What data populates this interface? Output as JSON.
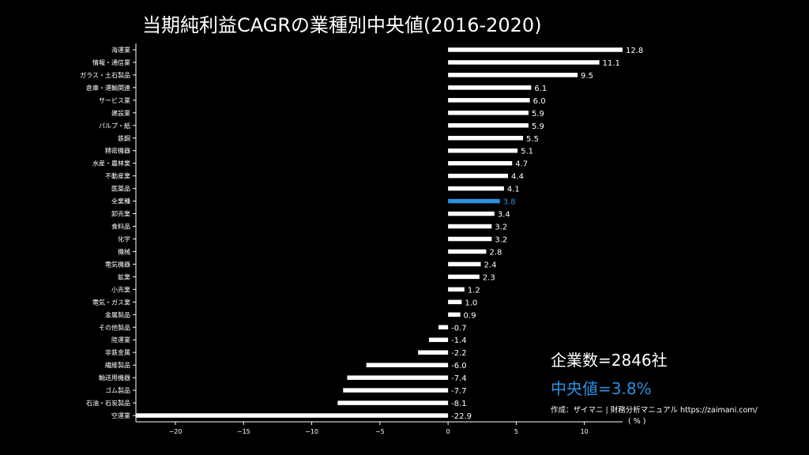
{
  "colors": {
    "background": "#000000",
    "bar": "#ffffff",
    "highlight": "#2d8fe0",
    "text": "#ffffff"
  },
  "annotations": {
    "company_count": "企業数=2846社",
    "median": "中央値=3.8%",
    "credit": "作成：ザイマニ | 財務分析マニュアル https://zaimani.com/"
  },
  "chart_data": {
    "type": "bar",
    "orientation": "horizontal",
    "title": "当期純利益CAGRの業種別中央値(2016-2020)",
    "xlabel": "( % )",
    "xlim": [
      -22.9,
      12.8
    ],
    "xticks": [
      -20,
      -15,
      -10,
      -5,
      0,
      5,
      10
    ],
    "xtick_labels": [
      "−20",
      "−15",
      "−10",
      "−5",
      "0",
      "5",
      "10"
    ],
    "highlight_category": "全業種",
    "categories": [
      "海運業",
      "情報・通信業",
      "ガラス・土石製品",
      "倉庫・運輸関連",
      "サービス業",
      "建設業",
      "パルプ・紙",
      "鉄鋼",
      "精密機器",
      "水産・農林業",
      "不動産業",
      "医薬品",
      "全業種",
      "卸売業",
      "食料品",
      "化学",
      "機械",
      "電気機器",
      "鉱業",
      "小売業",
      "電気・ガス業",
      "金属製品",
      "その他製品",
      "陸運業",
      "非鉄金属",
      "繊維製品",
      "輸送用機器",
      "ゴム製品",
      "石油・石炭製品",
      "空運業"
    ],
    "values": [
      12.8,
      11.1,
      9.5,
      6.1,
      6.0,
      5.9,
      5.9,
      5.5,
      5.1,
      4.7,
      4.4,
      4.1,
      3.8,
      3.4,
      3.2,
      3.2,
      2.8,
      2.4,
      2.3,
      1.2,
      1.0,
      0.9,
      -0.7,
      -1.4,
      -2.2,
      -6.0,
      -7.4,
      -7.7,
      -8.1,
      -22.9
    ],
    "value_labels": [
      "12.8",
      "11.1",
      "9.5",
      "6.1",
      "6.0",
      "5.9",
      "5.9",
      "5.5",
      "5.1",
      "4.7",
      "4.4",
      "4.1",
      "3.8",
      "3.4",
      "3.2",
      "3.2",
      "2.8",
      "2.4",
      "2.3",
      "1.2",
      "1.0",
      "0.9",
      "-0.7",
      "-1.4",
      "-2.2",
      "-6.0",
      "-7.4",
      "-7.7",
      "-8.1",
      "-22.9"
    ],
    "grid": false
  }
}
